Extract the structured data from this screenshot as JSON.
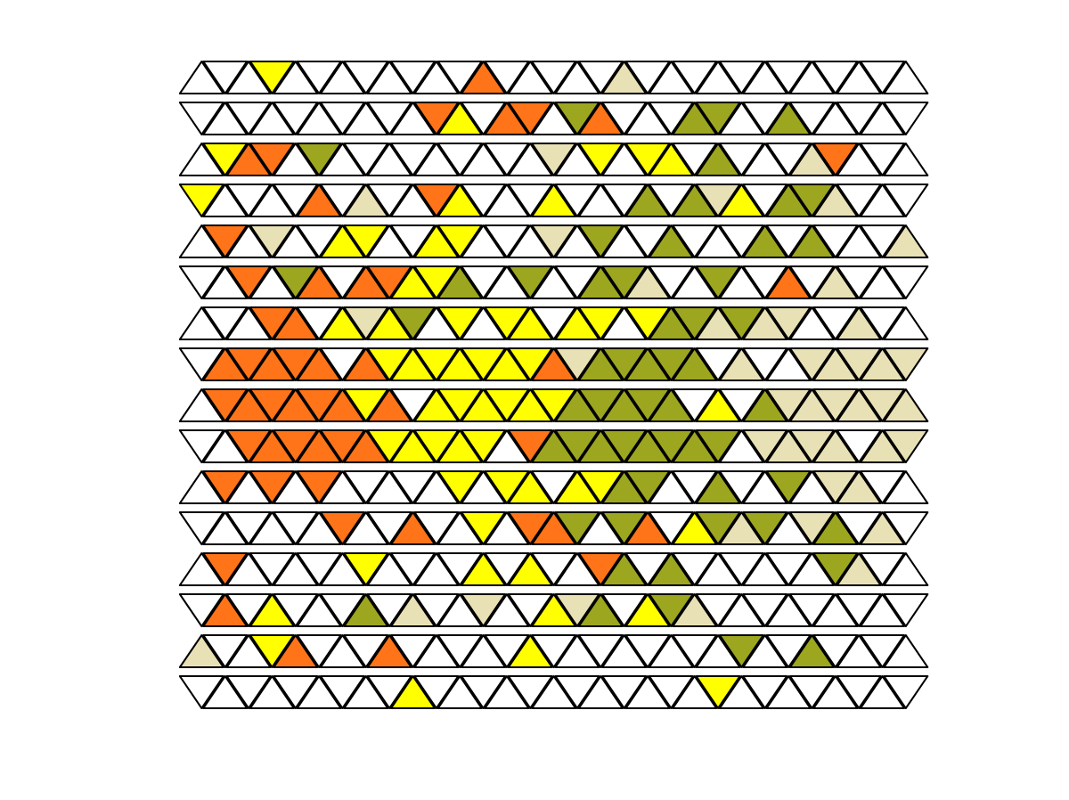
{
  "grid": {
    "cols": 31,
    "palette": {
      "W": "#ffffff",
      "O": "#ff7418",
      "Y": "#ffff00",
      "G": "#9da61f",
      "T": "#e9e1b6"
    },
    "rows": [
      [
        [
          3,
          "Y"
        ],
        [
          12,
          "O"
        ],
        [
          18,
          "T"
        ]
      ],
      [
        [
          10,
          "O"
        ],
        [
          11,
          "Y"
        ],
        [
          13,
          "O"
        ],
        [
          14,
          "O"
        ],
        [
          16,
          "G"
        ],
        [
          17,
          "O"
        ],
        [
          21,
          "G"
        ],
        [
          22,
          "G"
        ],
        [
          25,
          "G"
        ]
      ],
      [
        [
          1,
          "Y"
        ],
        [
          2,
          "O"
        ],
        [
          3,
          "O"
        ],
        [
          5,
          "G"
        ],
        [
          15,
          "T"
        ],
        [
          17,
          "Y"
        ],
        [
          19,
          "Y"
        ],
        [
          20,
          "Y"
        ],
        [
          22,
          "G"
        ],
        [
          26,
          "T"
        ],
        [
          27,
          "O"
        ]
      ],
      [
        [
          0,
          "Y"
        ],
        [
          5,
          "O"
        ],
        [
          7,
          "T"
        ],
        [
          10,
          "O"
        ],
        [
          11,
          "Y"
        ],
        [
          15,
          "Y"
        ],
        [
          19,
          "G"
        ],
        [
          21,
          "G"
        ],
        [
          22,
          "T"
        ],
        [
          23,
          "Y"
        ],
        [
          25,
          "G"
        ],
        [
          26,
          "G"
        ],
        [
          27,
          "T"
        ]
      ],
      [
        [
          1,
          "O"
        ],
        [
          3,
          "T"
        ],
        [
          6,
          "Y"
        ],
        [
          7,
          "Y"
        ],
        [
          10,
          "Y"
        ],
        [
          11,
          "Y"
        ],
        [
          15,
          "T"
        ],
        [
          17,
          "G"
        ],
        [
          20,
          "G"
        ],
        [
          24,
          "G"
        ],
        [
          26,
          "G"
        ],
        [
          30,
          "T"
        ]
      ],
      [
        [
          2,
          "O"
        ],
        [
          4,
          "G"
        ],
        [
          5,
          "O"
        ],
        [
          7,
          "O"
        ],
        [
          8,
          "O"
        ],
        [
          9,
          "Y"
        ],
        [
          10,
          "Y"
        ],
        [
          11,
          "G"
        ],
        [
          14,
          "G"
        ],
        [
          17,
          "G"
        ],
        [
          18,
          "G"
        ],
        [
          19,
          "T"
        ],
        [
          22,
          "G"
        ],
        [
          25,
          "O"
        ],
        [
          27,
          "T"
        ]
      ],
      [
        [
          3,
          "O"
        ],
        [
          4,
          "O"
        ],
        [
          6,
          "Y"
        ],
        [
          7,
          "T"
        ],
        [
          8,
          "Y"
        ],
        [
          9,
          "G"
        ],
        [
          11,
          "Y"
        ],
        [
          13,
          "Y"
        ],
        [
          14,
          "Y"
        ],
        [
          16,
          "Y"
        ],
        [
          17,
          "Y"
        ],
        [
          19,
          "Y"
        ],
        [
          20,
          "G"
        ],
        [
          21,
          "G"
        ],
        [
          22,
          "T"
        ],
        [
          23,
          "G"
        ],
        [
          24,
          "T"
        ],
        [
          25,
          "T"
        ],
        [
          28,
          "T"
        ]
      ],
      [
        [
          1,
          "O"
        ],
        [
          2,
          "O"
        ],
        [
          3,
          "O"
        ],
        [
          4,
          "O"
        ],
        [
          5,
          "O"
        ],
        [
          7,
          "O"
        ],
        [
          8,
          "Y"
        ],
        [
          9,
          "Y"
        ],
        [
          10,
          "Y"
        ],
        [
          11,
          "Y"
        ],
        [
          12,
          "Y"
        ],
        [
          13,
          "Y"
        ],
        [
          14,
          "Y"
        ],
        [
          15,
          "O"
        ],
        [
          16,
          "T"
        ],
        [
          17,
          "G"
        ],
        [
          18,
          "G"
        ],
        [
          19,
          "G"
        ],
        [
          20,
          "G"
        ],
        [
          21,
          "G"
        ],
        [
          23,
          "T"
        ],
        [
          26,
          "T"
        ],
        [
          27,
          "T"
        ],
        [
          28,
          "T"
        ],
        [
          29,
          "T"
        ],
        [
          30,
          "T"
        ]
      ],
      [
        [
          1,
          "O"
        ],
        [
          2,
          "O"
        ],
        [
          3,
          "O"
        ],
        [
          4,
          "O"
        ],
        [
          5,
          "O"
        ],
        [
          6,
          "O"
        ],
        [
          7,
          "Y"
        ],
        [
          8,
          "O"
        ],
        [
          10,
          "Y"
        ],
        [
          11,
          "Y"
        ],
        [
          12,
          "Y"
        ],
        [
          13,
          "Y"
        ],
        [
          14,
          "Y"
        ],
        [
          15,
          "Y"
        ],
        [
          16,
          "G"
        ],
        [
          17,
          "G"
        ],
        [
          18,
          "G"
        ],
        [
          19,
          "G"
        ],
        [
          20,
          "G"
        ],
        [
          22,
          "Y"
        ],
        [
          24,
          "G"
        ],
        [
          25,
          "T"
        ],
        [
          26,
          "T"
        ],
        [
          27,
          "T"
        ],
        [
          28,
          "T"
        ],
        [
          29,
          "T"
        ],
        [
          30,
          "T"
        ]
      ],
      [
        [
          2,
          "O"
        ],
        [
          3,
          "O"
        ],
        [
          4,
          "O"
        ],
        [
          5,
          "O"
        ],
        [
          6,
          "O"
        ],
        [
          7,
          "O"
        ],
        [
          8,
          "Y"
        ],
        [
          9,
          "Y"
        ],
        [
          10,
          "Y"
        ],
        [
          11,
          "Y"
        ],
        [
          12,
          "Y"
        ],
        [
          14,
          "O"
        ],
        [
          15,
          "G"
        ],
        [
          16,
          "G"
        ],
        [
          17,
          "G"
        ],
        [
          18,
          "G"
        ],
        [
          19,
          "G"
        ],
        [
          20,
          "G"
        ],
        [
          21,
          "G"
        ],
        [
          22,
          "G"
        ],
        [
          24,
          "T"
        ],
        [
          25,
          "T"
        ],
        [
          26,
          "T"
        ],
        [
          27,
          "T"
        ],
        [
          29,
          "T"
        ],
        [
          30,
          "T"
        ]
      ],
      [
        [
          1,
          "O"
        ],
        [
          3,
          "O"
        ],
        [
          5,
          "O"
        ],
        [
          11,
          "Y"
        ],
        [
          13,
          "Y"
        ],
        [
          14,
          "Y"
        ],
        [
          16,
          "Y"
        ],
        [
          17,
          "Y"
        ],
        [
          18,
          "G"
        ],
        [
          19,
          "G"
        ],
        [
          22,
          "G"
        ],
        [
          25,
          "G"
        ],
        [
          27,
          "T"
        ],
        [
          28,
          "T"
        ]
      ],
      [
        [
          6,
          "O"
        ],
        [
          9,
          "O"
        ],
        [
          12,
          "Y"
        ],
        [
          14,
          "O"
        ],
        [
          15,
          "O"
        ],
        [
          16,
          "G"
        ],
        [
          18,
          "G"
        ],
        [
          19,
          "O"
        ],
        [
          21,
          "Y"
        ],
        [
          22,
          "G"
        ],
        [
          23,
          "T"
        ],
        [
          24,
          "G"
        ],
        [
          26,
          "T"
        ],
        [
          27,
          "G"
        ],
        [
          29,
          "T"
        ]
      ],
      [
        [
          1,
          "O"
        ],
        [
          7,
          "Y"
        ],
        [
          12,
          "Y"
        ],
        [
          14,
          "Y"
        ],
        [
          17,
          "O"
        ],
        [
          18,
          "G"
        ],
        [
          20,
          "G"
        ],
        [
          27,
          "G"
        ],
        [
          28,
          "T"
        ]
      ],
      [
        [
          1,
          "O"
        ],
        [
          3,
          "Y"
        ],
        [
          7,
          "G"
        ],
        [
          9,
          "T"
        ],
        [
          12,
          "T"
        ],
        [
          15,
          "Y"
        ],
        [
          16,
          "T"
        ],
        [
          17,
          "G"
        ],
        [
          19,
          "Y"
        ],
        [
          20,
          "G"
        ],
        [
          21,
          "T"
        ]
      ],
      [
        [
          0,
          "T"
        ],
        [
          3,
          "Y"
        ],
        [
          4,
          "O"
        ],
        [
          8,
          "O"
        ],
        [
          14,
          "Y"
        ],
        [
          23,
          "G"
        ],
        [
          26,
          "G"
        ]
      ],
      [
        [
          9,
          "Y"
        ],
        [
          22,
          "Y"
        ]
      ]
    ]
  }
}
